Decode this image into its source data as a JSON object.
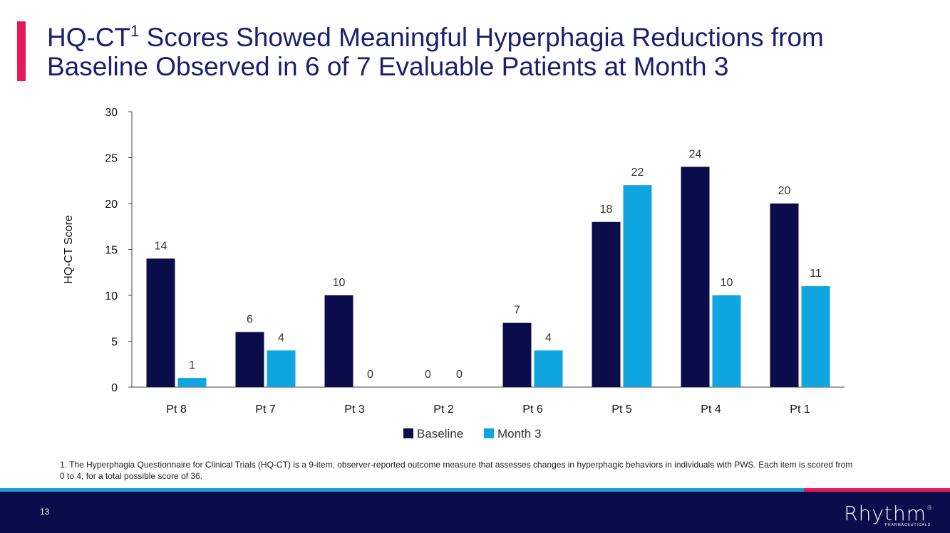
{
  "slide": {
    "title_prefix": "HQ-CT",
    "title_sup": "1",
    "title_rest": " Scores Showed Meaningful Hyperphagia Reductions from Baseline Observed in 6 of 7 Evaluable Patients at Month 3",
    "footnote": "1. The Hyperphagia Questionnaire for Clinical Trials (HQ-CT) is a 9-item, observer-reported outcome measure that assesses changes in hyperphagic behaviors in individuals with PWS. Each item is scored from 0 to 4, for a total possible score of 36.",
    "page_number": "13",
    "logo_word": "Rhythm",
    "logo_reg": "®",
    "logo_sub": "PHARMACEUTICALS"
  },
  "colors": {
    "accent": "#e5195a",
    "baseline": "#0b0c4a",
    "month3": "#0ea5e0",
    "title": "#1b1f6e"
  },
  "chart_data": {
    "type": "bar",
    "title": "",
    "xlabel": "",
    "ylabel": "HQ-CT Score",
    "ylim": [
      0,
      30
    ],
    "yticks": [
      0,
      5,
      10,
      15,
      20,
      25,
      30
    ],
    "categories": [
      "Pt 8",
      "Pt 7",
      "Pt 3",
      "Pt 2",
      "Pt 6",
      "Pt 5",
      "Pt 4",
      "Pt 1"
    ],
    "series": [
      {
        "name": "Baseline",
        "color": "#0b0c4a",
        "values": [
          14,
          6,
          10,
          0,
          7,
          18,
          24,
          20
        ]
      },
      {
        "name": "Month 3",
        "color": "#0ea5e0",
        "values": [
          1,
          4,
          0,
          0,
          4,
          22,
          10,
          11
        ]
      }
    ],
    "data_labels": true,
    "grid": false,
    "legend": "bottom-center"
  }
}
